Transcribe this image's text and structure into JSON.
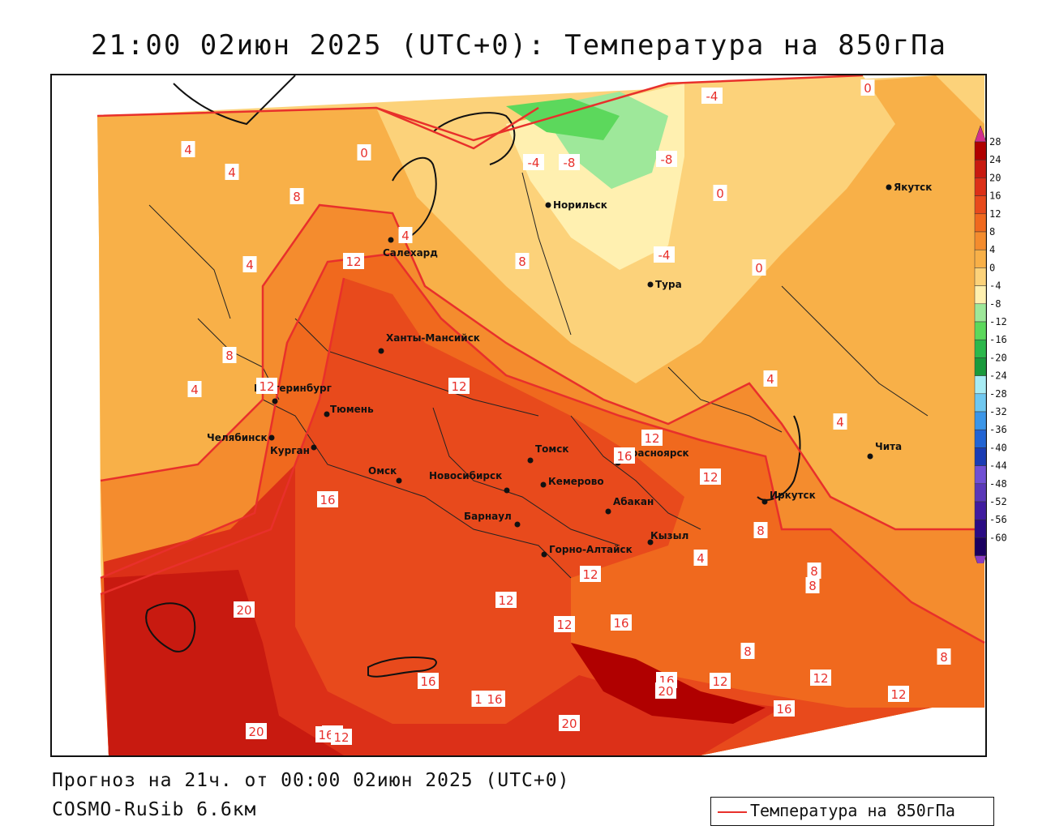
{
  "title": "21:00 02июн 2025 (UTC+0): Температура на 850гПа",
  "footer": {
    "forecast_line": "Прогноз на 21ч. от 00:00 02июн 2025 (UTC+0)",
    "model_line": "COSMO-RuSib 6.6км"
  },
  "legend": {
    "label": "Температура на 850гПа",
    "line_color": "#e8302b"
  },
  "colorbar": {
    "ticks": [
      "28",
      "24",
      "20",
      "16",
      "12",
      "8",
      "4",
      "0",
      "-4",
      "-8",
      "-12",
      "-16",
      "-20",
      "-24",
      "-28",
      "-32",
      "-36",
      "-40",
      "-44",
      "-48",
      "-52",
      "-56",
      "-60"
    ],
    "colors": [
      "#b00000",
      "#c81a10",
      "#dc3018",
      "#e84a1c",
      "#f0691e",
      "#f48c2e",
      "#f8b048",
      "#fcd27a",
      "#fff0b0",
      "#9ee89a",
      "#5cd85c",
      "#2cb84c",
      "#1a9a3c",
      "#a8ecf4",
      "#70c8f0",
      "#3c96e8",
      "#2264d4",
      "#1a3cb4",
      "#7050d4",
      "#5a38b8",
      "#401ca0",
      "#2a0c84",
      "#1a0060"
    ],
    "top_arrow_color": "#d22e8c",
    "bottom_arrow_color": "#8a3cc0"
  },
  "cities": [
    {
      "name": "Норильск"
    },
    {
      "name": "Салехард"
    },
    {
      "name": "Якутск"
    },
    {
      "name": "Тура"
    },
    {
      "name": "Ханты-Мансийск"
    },
    {
      "name": "Екатеринбург"
    },
    {
      "name": "Тюмень"
    },
    {
      "name": "Челябинск"
    },
    {
      "name": "Курган"
    },
    {
      "name": "Омск"
    },
    {
      "name": "Новосибирск"
    },
    {
      "name": "Томск"
    },
    {
      "name": "Кемерово"
    },
    {
      "name": "Красноярск"
    },
    {
      "name": "Абакан"
    },
    {
      "name": "Барнаул"
    },
    {
      "name": "Иркутск"
    },
    {
      "name": "Чита"
    },
    {
      "name": "Кызыл"
    },
    {
      "name": "Горно-Алтайск"
    }
  ],
  "contour_labels": [
    "-4",
    "0",
    "-4",
    "-8",
    "-8",
    "0",
    "-4",
    "0",
    "4",
    "4",
    "0",
    "8",
    "4",
    "12",
    "4",
    "8",
    "4",
    "12",
    "12",
    "8",
    "12",
    "4",
    "4",
    "16",
    "12",
    "16",
    "20",
    "12",
    "12",
    "16",
    "16",
    "8",
    "8",
    "12",
    "4",
    "8",
    "8",
    "16",
    "20",
    "12",
    "12",
    "12",
    "8",
    "20",
    "16",
    "12",
    "20",
    "16",
    "12",
    "1",
    "16"
  ]
}
